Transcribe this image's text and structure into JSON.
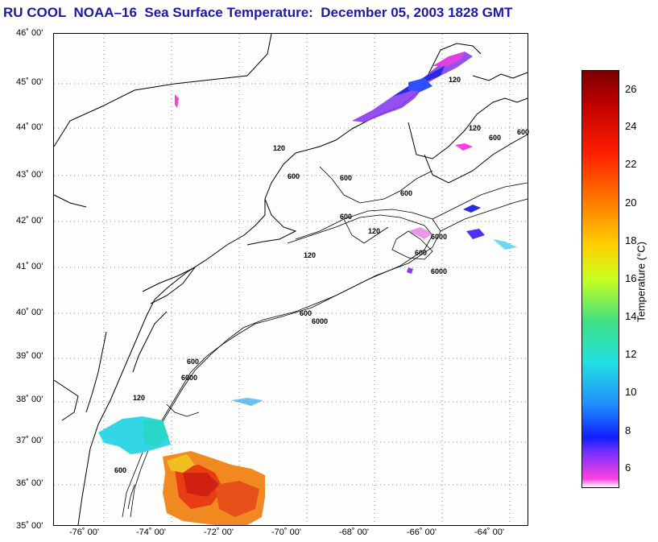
{
  "title": "RU COOL  NOAA–16  Sea Surface Temperature:  December 05, 2003 1828 GMT",
  "map": {
    "lat_labels": [
      "46˚ 00'",
      "45˚ 00'",
      "44˚ 00'",
      "43˚ 00'",
      "42˚ 00'",
      "41˚ 00'",
      "40˚ 00'",
      "39˚ 00'",
      "38˚ 00'",
      "37˚ 00'",
      "36˚ 00'",
      "35˚ 00'"
    ],
    "lon_labels": [
      "-76˚ 00'",
      "-74˚ 00'",
      "-72˚ 00'",
      "-70˚ 00'",
      "-68˚ 00'",
      "-66˚ 00'",
      "-64˚ 00'"
    ],
    "bathymetry_labels": [
      "120",
      "600",
      "600",
      "600",
      "6000",
      "120",
      "600",
      "600",
      "120",
      "600",
      "6000",
      "600",
      "6000",
      "120",
      "600",
      "120",
      "6000",
      "600",
      "120",
      "600"
    ]
  },
  "colorbar": {
    "label": "Temperature (°C)",
    "ticks": [
      "26",
      "24",
      "22",
      "20",
      "18",
      "16",
      "14",
      "12",
      "10",
      "8",
      "6"
    ],
    "range": [
      5,
      27
    ]
  }
}
